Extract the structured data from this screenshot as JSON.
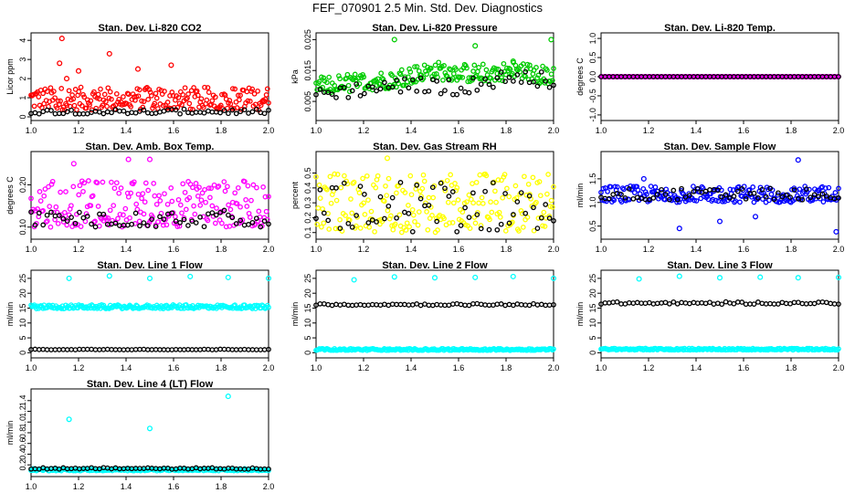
{
  "page_title": "FEF_070901  2.5 Min. Std. Dev. Diagnostics",
  "colors": {
    "red": "#ff0000",
    "green": "#00cc00",
    "magenta": "#ff00ff",
    "yellow": "#ffff00",
    "blue": "#0000ff",
    "cyan": "#00ffff",
    "black": "#000000"
  },
  "chart_data": [
    {
      "type": "scatter",
      "title": "Stan. Dev. Li-820 CO2",
      "ylabel": "Licor ppm",
      "xlim": [
        1.0,
        2.0
      ],
      "xticks": [
        "1.0",
        "1.2",
        "1.4",
        "1.6",
        "1.8",
        "2.0"
      ],
      "ylim": [
        0,
        4.2
      ],
      "yticks": [
        0,
        1,
        2,
        3,
        4
      ],
      "ytick_labels": [
        "0",
        "1",
        "2",
        "3",
        "4"
      ],
      "series": [
        {
          "color": "red",
          "base": 0.35,
          "spread": 1.2,
          "outliers": [
            [
              1.13,
              4.1
            ],
            [
              1.33,
              3.3
            ],
            [
              1.12,
              2.8
            ],
            [
              1.59,
              2.7
            ],
            [
              1.2,
              2.4
            ],
            [
              1.45,
              2.5
            ],
            [
              1.15,
              2.0
            ],
            [
              1.98,
              0.8
            ]
          ]
        },
        {
          "color": "black",
          "base": 0.15,
          "spread": 0.25,
          "outliers": []
        }
      ]
    },
    {
      "type": "scatter",
      "title": "Stan. Dev. Li-820 Pressure",
      "ylabel": "kPa",
      "xlim": [
        1.0,
        2.0
      ],
      "xticks": [
        "1.0",
        "1.2",
        "1.4",
        "1.6",
        "1.8",
        "2.0"
      ],
      "ylim": [
        0,
        0.026
      ],
      "yticks": [
        0.005,
        0.015,
        0.025
      ],
      "ytick_labels": [
        "0.005",
        "0.015",
        "0.025"
      ],
      "series": [
        {
          "color": "green",
          "base": 0.007,
          "spread": 0.006,
          "trend": [
            [
              1.0,
              0.007
            ],
            [
              1.3,
              0.009
            ],
            [
              1.5,
              0.012
            ],
            [
              1.65,
              0.011
            ],
            [
              1.85,
              0.012
            ],
            [
              2.0,
              0.01
            ]
          ],
          "outliers": [
            [
              1.33,
              0.025
            ],
            [
              1.67,
              0.023
            ],
            [
              1.99,
              0.025
            ],
            [
              1.83,
              0.018
            ]
          ]
        },
        {
          "color": "black",
          "base": 0.005,
          "spread": 0.005,
          "trend": [
            [
              1.0,
              0.005
            ],
            [
              1.4,
              0.008
            ],
            [
              1.6,
              0.007
            ],
            [
              1.85,
              0.011
            ],
            [
              2.0,
              0.009
            ]
          ],
          "outliers": []
        }
      ]
    },
    {
      "type": "scatter",
      "title": "Stan. Dev. Li-820 Temp.",
      "ylabel": "degrees C",
      "xlim": [
        1.0,
        2.0
      ],
      "xticks": [
        "1.0",
        "1.2",
        "1.4",
        "1.6",
        "1.8",
        "2.0"
      ],
      "ylim": [
        -1.05,
        1.05
      ],
      "yticks": [
        -1.0,
        -0.5,
        0.0,
        0.5,
        1.0
      ],
      "ytick_labels": [
        "-1.0",
        "-0.5",
        "0.0",
        "0.5",
        "1.0"
      ],
      "series": [
        {
          "color": "magenta",
          "base": 0,
          "spread": 0,
          "outliers": []
        },
        {
          "color": "black",
          "base": 0,
          "spread": 0,
          "outliers": []
        }
      ]
    },
    {
      "type": "scatter",
      "title": "Stan. Dev. Amb. Box Temp.",
      "ylabel": "degrees C",
      "xlim": [
        1.0,
        2.0
      ],
      "xticks": [
        "1.0",
        "1.2",
        "1.4",
        "1.6",
        "1.8",
        "2.0"
      ],
      "ylim": [
        0.08,
        0.27
      ],
      "yticks": [
        0.1,
        0.2
      ],
      "ytick_labels": [
        "0.10",
        "0.20"
      ],
      "series": [
        {
          "color": "magenta",
          "base": 0.1,
          "spread": 0.11,
          "outliers": [
            [
              1.41,
              0.26
            ],
            [
              1.18,
              0.25
            ],
            [
              1.5,
              0.26
            ]
          ]
        },
        {
          "color": "black",
          "base": 0.1,
          "spread": 0.04,
          "outliers": []
        }
      ]
    },
    {
      "type": "scatter",
      "title": "Stan. Dev. Gas Stream RH",
      "ylabel": "percent",
      "xlim": [
        1.0,
        2.0
      ],
      "xticks": [
        "1.0",
        "1.2",
        "1.4",
        "1.6",
        "1.8",
        "2.0"
      ],
      "ylim": [
        0.08,
        0.62
      ],
      "yticks": [
        0.1,
        0.2,
        0.3,
        0.4,
        0.5
      ],
      "ytick_labels": [
        "0.1",
        "0.2",
        "0.3",
        "0.4",
        "0.5"
      ],
      "series": [
        {
          "color": "yellow",
          "base": 0.1,
          "spread": 0.4,
          "outliers": [
            [
              1.3,
              0.6
            ]
          ]
        },
        {
          "color": "black",
          "base": 0.1,
          "spread": 0.35,
          "outliers": []
        }
      ]
    },
    {
      "type": "scatter",
      "title": "Stan. Dev. Sample Flow",
      "ylabel": "ml/min",
      "xlim": [
        1.0,
        2.0
      ],
      "xticks": [
        "1.0",
        "1.2",
        "1.4",
        "1.6",
        "1.8",
        "2.0"
      ],
      "ylim": [
        0.3,
        2.0
      ],
      "yticks": [
        0.5,
        1.0,
        1.5
      ],
      "ytick_labels": [
        "0.5",
        "1.0",
        "1.5"
      ],
      "series": [
        {
          "color": "blue",
          "base": 1.0,
          "spread": 0.35,
          "outliers": [
            [
              1.83,
              1.9
            ],
            [
              1.18,
              1.5
            ],
            [
              1.33,
              0.45
            ],
            [
              1.99,
              0.38
            ],
            [
              1.5,
              0.6
            ],
            [
              1.65,
              0.7
            ]
          ]
        },
        {
          "color": "black",
          "base": 1.05,
          "spread": 0.25,
          "outliers": []
        }
      ]
    },
    {
      "type": "scatter",
      "title": "Stan. Dev. Line 1 Flow",
      "ylabel": "ml/min",
      "xlim": [
        1.0,
        2.0
      ],
      "xticks": [
        "1.0",
        "1.2",
        "1.4",
        "1.6",
        "1.8",
        "2.0"
      ],
      "ylim": [
        -0.5,
        26.5
      ],
      "yticks": [
        0,
        5,
        10,
        15,
        20,
        25
      ],
      "ytick_labels": [
        "0",
        "5",
        "10",
        "15",
        "20",
        "25"
      ],
      "series": [
        {
          "color": "cyan",
          "base": 14.8,
          "spread": 1.3,
          "outliers": [
            [
              1.16,
              25
            ],
            [
              1.33,
              25.8
            ],
            [
              1.5,
              25
            ],
            [
              1.67,
              25.6
            ],
            [
              1.83,
              25.3
            ],
            [
              2.0,
              25
            ]
          ]
        },
        {
          "color": "black",
          "base": 1.0,
          "spread": 0.2,
          "outliers": []
        }
      ]
    },
    {
      "type": "scatter",
      "title": "Stan. Dev. Line 2 Flow",
      "ylabel": "ml/min",
      "xlim": [
        1.0,
        2.0
      ],
      "xticks": [
        "1.0",
        "1.2",
        "1.4",
        "1.6",
        "1.8",
        "2.0"
      ],
      "ylim": [
        -0.5,
        26.5
      ],
      "yticks": [
        0,
        5,
        10,
        15,
        20,
        25
      ],
      "ytick_labels": [
        "0",
        "5",
        "10",
        "15",
        "20",
        "25"
      ],
      "series": [
        {
          "color": "cyan",
          "base": 0.8,
          "spread": 0.6,
          "outliers": [
            [
              1.16,
              24.5
            ],
            [
              1.33,
              25.5
            ],
            [
              1.5,
              25.2
            ],
            [
              1.67,
              25.3
            ],
            [
              1.83,
              25.6
            ],
            [
              2.0,
              25
            ]
          ]
        },
        {
          "color": "black",
          "base": 15.9,
          "spread": 0.6,
          "outliers": []
        }
      ]
    },
    {
      "type": "scatter",
      "title": "Stan. Dev. Line 3 Flow",
      "ylabel": "ml/min",
      "xlim": [
        1.0,
        2.0
      ],
      "xticks": [
        "1.0",
        "1.2",
        "1.4",
        "1.6",
        "1.8",
        "2.0"
      ],
      "ylim": [
        -0.5,
        26.5
      ],
      "yticks": [
        0,
        5,
        10,
        15,
        20,
        25
      ],
      "ytick_labels": [
        "0",
        "5",
        "10",
        "15",
        "20",
        "25"
      ],
      "series": [
        {
          "color": "cyan",
          "base": 0.9,
          "spread": 0.6,
          "outliers": [
            [
              1.16,
              24.8
            ],
            [
              1.33,
              25.7
            ],
            [
              1.5,
              25.2
            ],
            [
              1.67,
              25.4
            ],
            [
              1.83,
              25.2
            ],
            [
              2.0,
              25.3
            ]
          ]
        },
        {
          "color": "black",
          "base": 16.3,
          "spread": 0.8,
          "outliers": []
        }
      ]
    },
    {
      "type": "scatter",
      "title": "Stan. Dev. Line 4 (LT) Flow",
      "ylabel": "ml/min",
      "xlim": [
        1.0,
        2.0
      ],
      "xticks": [
        "1.0",
        "1.2",
        "1.4",
        "1.6",
        "1.8",
        "2.0"
      ],
      "ylim": [
        0.05,
        1.55
      ],
      "yticks": [
        0.2,
        0.4,
        0.6,
        0.8,
        1.0,
        1.2,
        1.4
      ],
      "ytick_labels": [
        "0.2",
        "0.4",
        "0.6",
        "0.8",
        "1.0",
        "1.2",
        "1.4"
      ],
      "series": [
        {
          "color": "cyan",
          "base": 0.09,
          "spread": 0.04,
          "outliers": [
            [
              1.16,
              1.05
            ],
            [
              1.5,
              0.88
            ],
            [
              1.83,
              1.48
            ]
          ]
        },
        {
          "color": "black",
          "base": 0.12,
          "spread": 0.03,
          "outliers": []
        }
      ]
    }
  ]
}
